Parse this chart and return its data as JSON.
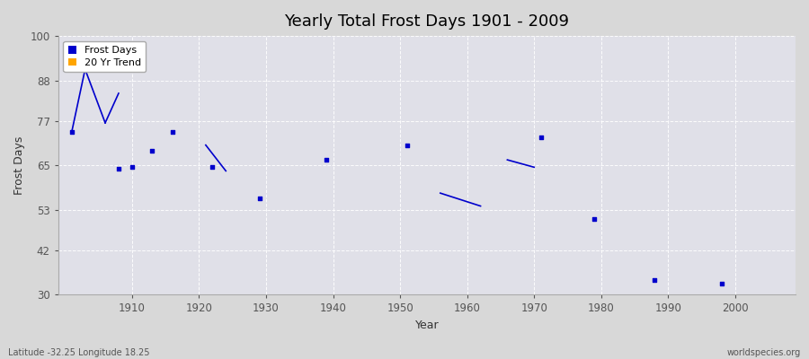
{
  "title": "Yearly Total Frost Days 1901 - 2009",
  "xlabel": "Year",
  "ylabel": "Frost Days",
  "ylim": [
    30,
    100
  ],
  "yticks": [
    30,
    42,
    53,
    65,
    77,
    88,
    100
  ],
  "xlim": [
    1899,
    2009
  ],
  "fig_bg_color": "#d8d8d8",
  "plot_bg_color": "#e0e0e8",
  "grid_color": "#ffffff",
  "footer_left": "Latitude -32.25 Longitude 18.25",
  "footer_right": "worldspecies.org",
  "frost_days_color": "#0000cc",
  "trend_color": "#ffa500",
  "scatter_points": [
    [
      1901,
      74.0
    ],
    [
      1908,
      64.0
    ],
    [
      1910,
      64.5
    ],
    [
      1913,
      69.0
    ],
    [
      1916,
      74.0
    ],
    [
      1922,
      64.5
    ],
    [
      1929,
      56.0
    ],
    [
      1939,
      66.5
    ],
    [
      1951,
      70.5
    ],
    [
      1971,
      72.5
    ],
    [
      1979,
      50.5
    ],
    [
      1988,
      34.0
    ],
    [
      1998,
      33.0
    ]
  ],
  "trend_segments": [
    [
      [
        1901,
        74.0
      ],
      [
        1903,
        91.0
      ]
    ],
    [
      [
        1903,
        91.0
      ],
      [
        1906,
        76.5
      ]
    ],
    [
      [
        1906,
        76.5
      ],
      [
        1908,
        84.5
      ]
    ],
    [
      [
        1921,
        70.5
      ],
      [
        1924,
        63.5
      ]
    ],
    [
      [
        1956,
        57.5
      ],
      [
        1962,
        54.0
      ]
    ],
    [
      [
        1966,
        66.5
      ],
      [
        1970,
        64.5
      ]
    ]
  ]
}
